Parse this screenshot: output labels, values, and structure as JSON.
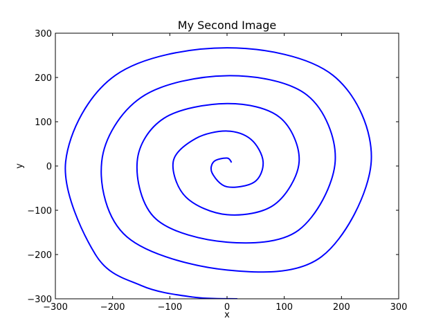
{
  "chart_data": {
    "type": "line",
    "title": "My Second Image",
    "xlabel": "x",
    "ylabel": "y",
    "xlim": [
      -300,
      300
    ],
    "ylim": [
      -300,
      300
    ],
    "xticks": [
      -300,
      -200,
      -100,
      0,
      100,
      200,
      300
    ],
    "yticks": [
      -300,
      -200,
      -100,
      0,
      100,
      200,
      300
    ],
    "xtick_labels": [
      "−300",
      "−200",
      "−100",
      "0",
      "100",
      "200",
      "300"
    ],
    "ytick_labels": [
      "−300",
      "−200",
      "−100",
      "0",
      "100",
      "200",
      "300"
    ],
    "grid": false,
    "legend": "none",
    "series_color": "#0000ff",
    "series": [
      {
        "curve": "archimedean-spiral",
        "points": [
          [
            8,
            8
          ],
          [
            0,
            18
          ],
          [
            -23,
            10
          ],
          [
            -26,
            -16
          ],
          [
            0,
            -47
          ],
          [
            48,
            -36
          ],
          [
            63,
            10
          ],
          [
            42,
            60
          ],
          [
            0,
            79
          ],
          [
            -55,
            62
          ],
          [
            -94,
            10
          ],
          [
            -72,
            -70
          ],
          [
            0,
            -110
          ],
          [
            83,
            -87
          ],
          [
            126,
            10
          ],
          [
            92,
            110
          ],
          [
            0,
            141
          ],
          [
            -110,
            108
          ],
          [
            -157,
            10
          ],
          [
            -124,
            -120
          ],
          [
            0,
            -172
          ],
          [
            125,
            -145
          ],
          [
            189,
            10
          ],
          [
            140,
            160
          ],
          [
            0,
            204
          ],
          [
            -150,
            155
          ],
          [
            -219,
            10
          ],
          [
            -175,
            -160
          ],
          [
            0,
            -235
          ],
          [
            165,
            -205
          ],
          [
            252,
            10
          ],
          [
            185,
            205
          ],
          [
            0,
            267
          ],
          [
            -195,
            205
          ],
          [
            -282,
            10
          ],
          [
            -230,
            -200
          ],
          [
            -150,
            -270
          ],
          [
            -60,
            -296
          ],
          [
            18,
            -300
          ]
        ]
      }
    ]
  }
}
